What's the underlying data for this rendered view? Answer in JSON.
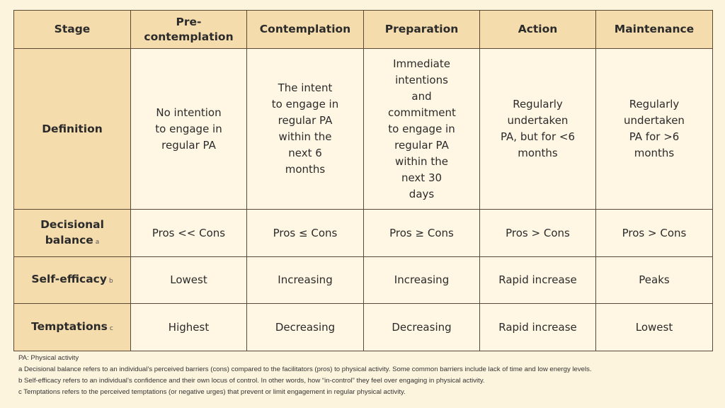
{
  "table": {
    "headers": [
      "Stage",
      "Pre-contemplation",
      "Contemplation",
      "Preparation",
      "Action",
      "Maintenance"
    ],
    "rows": [
      {
        "label": "Definition",
        "footnote": "",
        "cells": [
          "No intention to engage in regular PA",
          "The intent to engage in regular PA within the next 6 months",
          "Immediate intentions and commitment to engage in regular PA within the next 30 days",
          "Regularly undertaken PA, but for <6 months",
          "Regularly undertaken PA for >6 months"
        ]
      },
      {
        "label": "Decisional balance",
        "footnote": "a",
        "cells": [
          "Pros << Cons",
          "Pros ≤ Cons",
          "Pros ≥ Cons",
          "Pros > Cons",
          "Pros > Cons"
        ]
      },
      {
        "label": "Self-efficacy",
        "footnote": "b",
        "cells": [
          "Lowest",
          "Increasing",
          "Increasing",
          "Rapid increase",
          "Peaks"
        ]
      },
      {
        "label": "Temptations",
        "footnote": "c",
        "cells": [
          "Highest",
          "Decreasing",
          "Decreasing",
          "Rapid increase",
          "Lowest"
        ]
      }
    ]
  },
  "footnotes": [
    "PA: Physical activity",
    "a Decisional balance refers to an individual’s perceived barriers (cons) compared to the facilitators (pros) to physical activity. Some common barriers include lack of time and low energy levels.",
    "b Self-efficacy refers to an individual’s confidence and their own locus of control. In other words, how “in-control” they feel over engaging in physical activity.",
    "c Temptations refers to the perceived temptations (or negative urges) that prevent or limit engagement in regular physical activity."
  ],
  "colors": {
    "background": "#fdf4de",
    "header": "#f5dcad",
    "cell": "#fff7e3",
    "border": "#5a4a35"
  }
}
